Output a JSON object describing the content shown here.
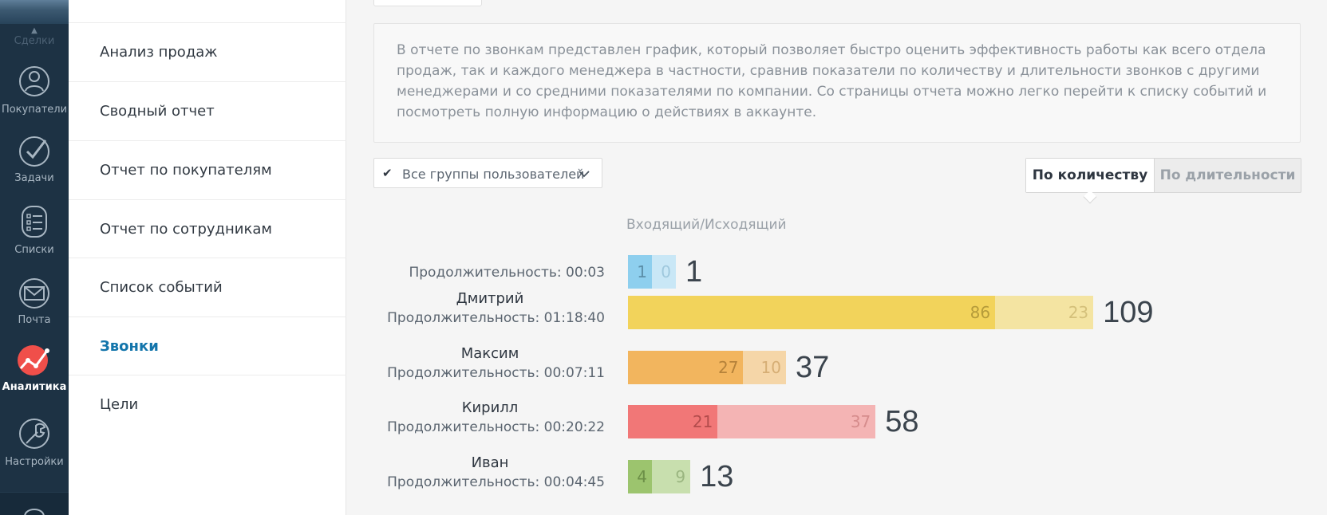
{
  "nav": {
    "deals_label": "Сделки",
    "items": [
      {
        "label": "Покупатели",
        "icon": "customers-icon"
      },
      {
        "label": "Задачи",
        "icon": "tasks-icon"
      },
      {
        "label": "Списки",
        "icon": "lists-icon"
      },
      {
        "label": "Почта",
        "icon": "mail-icon"
      },
      {
        "label": "Аналитика",
        "icon": "analytics-icon",
        "active": true
      },
      {
        "label": "Настройки",
        "icon": "settings-icon"
      }
    ]
  },
  "submenu": {
    "items": [
      {
        "label": "Анализ продаж"
      },
      {
        "label": "Сводный отчет"
      },
      {
        "label": "Отчет по покупателям"
      },
      {
        "label": "Отчет по сотрудникам"
      },
      {
        "label": "Список событий"
      },
      {
        "label": "Звонки",
        "active": true
      },
      {
        "label": "Цели"
      }
    ]
  },
  "description": "В отчете по звонкам представлен график, который позволяет быстро оценить эффективность работы как всего отдела продаж, так и каждого менеджера в частности, сравнив показатели по количеству и длительности звонков с другими менеджерами и со средними показателями по компании. Со страницы отчета можно легко перейти к списку событий и посмотреть полную информацию о действиях в аккаунте.",
  "filter": {
    "groups_label": "Все группы пользователей"
  },
  "toggle": {
    "by_count": "По количеству",
    "by_duration": "По длительности"
  },
  "chart_data": {
    "type": "bar",
    "header": "Входящий/Исходящий",
    "series": [
      {
        "name": "Входящий"
      },
      {
        "name": "Исходящий"
      }
    ],
    "rows": [
      {
        "name": "",
        "duration": "Продолжительность: 00:03",
        "incoming": 1,
        "outgoing": 0,
        "total": 1,
        "color_in": "#8ecfee",
        "color_out": "#c9e7f6",
        "text_in": "#5b8ea8",
        "text_out": "#9fc8dd"
      },
      {
        "name": "Дмитрий",
        "duration": "Продолжительность: 01:18:40",
        "incoming": 86,
        "outgoing": 23,
        "total": 109,
        "color_in": "#f2d35b",
        "color_out": "#f4e4a2",
        "text_in": "#b59b3a",
        "text_out": "#d4c07a"
      },
      {
        "name": "Максим",
        "duration": "Продолжительность: 00:07:11",
        "incoming": 27,
        "outgoing": 10,
        "total": 37,
        "color_in": "#f2b55e",
        "color_out": "#f5d6a8",
        "text_in": "#b5823a",
        "text_out": "#d6ae75"
      },
      {
        "name": "Кирилл",
        "duration": "Продолжительность: 00:20:22",
        "incoming": 21,
        "outgoing": 37,
        "total": 58,
        "color_in": "#f17777",
        "color_out": "#f4b4b4",
        "text_in": "#b34c4c",
        "text_out": "#d68c8c"
      },
      {
        "name": "Иван",
        "duration": "Продолжительность: 00:04:45",
        "incoming": 4,
        "outgoing": 9,
        "total": 13,
        "color_in": "#9cc46e",
        "color_out": "#c8dfae",
        "text_in": "#6c8f47",
        "text_out": "#9ab580"
      }
    ]
  }
}
